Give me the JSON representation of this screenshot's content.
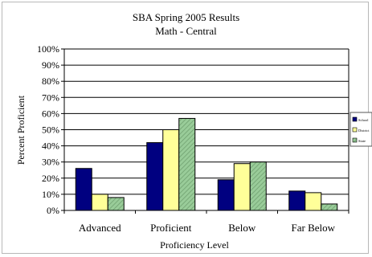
{
  "chart_data": {
    "type": "bar",
    "title": "SBA Spring 2005 Results",
    "subtitle": "Math - Central",
    "xlabel": "Proficiency Level",
    "ylabel": "Percent Proficient",
    "categories": [
      "Advanced",
      "Proficient",
      "Below",
      "Far Below"
    ],
    "ylim": [
      0,
      100
    ],
    "yticks": [
      "0%",
      "10%",
      "20%",
      "30%",
      "40%",
      "50%",
      "60%",
      "70%",
      "80%",
      "90%",
      "100%"
    ],
    "grid": true,
    "legend": "right",
    "series": [
      {
        "name": "School",
        "values": [
          26,
          42,
          19,
          12
        ],
        "color": "#000080",
        "pattern": "solid"
      },
      {
        "name": "District",
        "values": [
          10,
          50,
          29,
          11
        ],
        "color": "#ffff99",
        "pattern": "solid"
      },
      {
        "name": "State",
        "values": [
          8,
          57,
          30,
          4
        ],
        "color": "#99cc99",
        "pattern": "stripes"
      }
    ]
  }
}
